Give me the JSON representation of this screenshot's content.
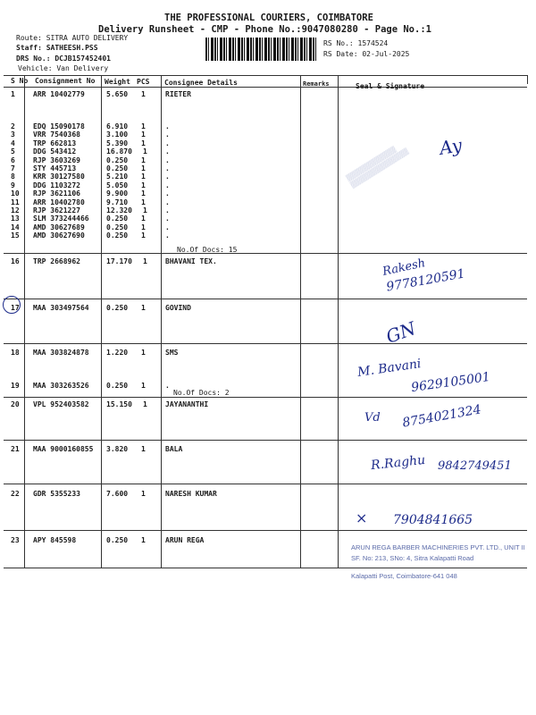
{
  "header": {
    "company": "THE PROFESSIONAL COURIERS, COIMBATORE",
    "subtitle": "Delivery Runsheet - CMP - Phone No.:9047080280 - Page No.:1",
    "route": "Route: SITRA AUTO DELIVERY",
    "staff": "Staff: SATHEESH.PSS",
    "drs": "DRS No.: DCJB157452401",
    "vehicle": "Vehicle: Van Delivery",
    "rs_no": "RS No.: 1574524",
    "rs_date": "RS Date: 02-Jul-2025"
  },
  "columns": {
    "sno": "S No",
    "consignment": "Consignment No",
    "weight": "Weight",
    "pcs": "PCS",
    "consignee": "Consignee Details",
    "remarks": "Remarks",
    "seal": "Seal & Signature"
  },
  "rows": [
    {
      "sno": "1",
      "cn": "ARR 10402779",
      "wt": "5.650",
      "pcs": "1",
      "consignee": "RIETER"
    },
    {
      "sno": "2",
      "cn": "EDQ 15090178",
      "wt": "6.910",
      "pcs": "1",
      "consignee": "."
    },
    {
      "sno": "3",
      "cn": "VRR 7540368",
      "wt": "3.100",
      "pcs": "1",
      "consignee": "."
    },
    {
      "sno": "4",
      "cn": "TRP 662813",
      "wt": "5.390",
      "pcs": "1",
      "consignee": "."
    },
    {
      "sno": "5",
      "cn": "DDG 543412",
      "wt": "16.870",
      "pcs": "1",
      "consignee": "."
    },
    {
      "sno": "6",
      "cn": "RJP 3603269",
      "wt": "0.250",
      "pcs": "1",
      "consignee": "."
    },
    {
      "sno": "7",
      "cn": "STY 445713",
      "wt": "0.250",
      "pcs": "1",
      "consignee": "."
    },
    {
      "sno": "8",
      "cn": "KRR 30127580",
      "wt": "5.210",
      "pcs": "1",
      "consignee": "."
    },
    {
      "sno": "9",
      "cn": "DDG 1103272",
      "wt": "5.050",
      "pcs": "1",
      "consignee": "."
    },
    {
      "sno": "10",
      "cn": "RJP 3621106",
      "wt": "9.900",
      "pcs": "1",
      "consignee": "."
    },
    {
      "sno": "11",
      "cn": "ARR 10402780",
      "wt": "9.710",
      "pcs": "1",
      "consignee": "."
    },
    {
      "sno": "12",
      "cn": "RJP 3621227",
      "wt": "12.320",
      "pcs": "1",
      "consignee": "."
    },
    {
      "sno": "13",
      "cn": "SLM 373244466",
      "wt": "0.250",
      "pcs": "1",
      "consignee": "."
    },
    {
      "sno": "14",
      "cn": "AMD 30627689",
      "wt": "0.250",
      "pcs": "1",
      "consignee": "."
    },
    {
      "sno": "15",
      "cn": "AMD 30627690",
      "wt": "0.250",
      "pcs": "1",
      "consignee": "."
    },
    {
      "sno": "16",
      "cn": "TRP 2668962",
      "wt": "17.170",
      "pcs": "1",
      "consignee": "BHAVANI TEX."
    },
    {
      "sno": "17",
      "cn": "MAA 303497564",
      "wt": "0.250",
      "pcs": "1",
      "consignee": "GOVIND"
    },
    {
      "sno": "18",
      "cn": "MAA 303824878",
      "wt": "1.220",
      "pcs": "1",
      "consignee": "SMS"
    },
    {
      "sno": "19",
      "cn": "MAA 303263526",
      "wt": "0.250",
      "pcs": "1",
      "consignee": "."
    },
    {
      "sno": "20",
      "cn": "VPL 952403582",
      "wt": "15.150",
      "pcs": "1",
      "consignee": "JAYANANTHI"
    },
    {
      "sno": "21",
      "cn": "MAA 9000160855",
      "wt": "3.820",
      "pcs": "1",
      "consignee": "BALA"
    },
    {
      "sno": "22",
      "cn": "GDR 5355233",
      "wt": "7.600",
      "pcs": "1",
      "consignee": "NARESH KUMAR"
    },
    {
      "sno": "23",
      "cn": "APY 845598",
      "wt": "0.250",
      "pcs": "1",
      "consignee": "ARUN REGA"
    }
  ],
  "docs_notes": [
    "No.Of Docs: 15",
    "No.Of Docs: 2"
  ],
  "handwriting": {
    "sig1": "Ay",
    "sig16_name": "Rakesh",
    "sig16_phone": "9778120591",
    "sig17": "GN",
    "sig18": "M. Bavani",
    "sig18_phone": "9629105001",
    "sig20_name": "Vd",
    "sig20_phone": "8754021324",
    "sig21": "R.Raghu",
    "sig21_phone": "9842749451",
    "sig22_phone": "7904841665"
  },
  "stamp": {
    "line1": "ARUN REGA BARBER MACHINERIES PVT. LTD., UNIT II",
    "line2": "SF. No: 213, SNo: 4, Sitra Kalapatti Road",
    "line3": "Kalapatti Post, Coimbatore-641 048"
  },
  "colors": {
    "ink": "#1a1a1a",
    "pen": "#1c2a8a",
    "stamp": "#5a6aa8"
  }
}
